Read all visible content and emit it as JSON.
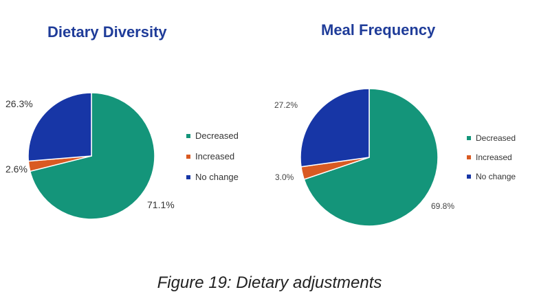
{
  "chart_data": [
    {
      "type": "pie",
      "title": "Dietary Diversity",
      "categories": [
        "Decreased",
        "Increased",
        "No change"
      ],
      "values": [
        71.1,
        2.6,
        26.3
      ],
      "labels": [
        "71.1%",
        "2.6%",
        "26.3%"
      ],
      "colors": [
        "#14957a",
        "#d95a22",
        "#1736a6"
      ],
      "legend_placement": "right"
    },
    {
      "type": "pie",
      "title": "Meal Frequency",
      "categories": [
        "Decreased",
        "Increased",
        "No change"
      ],
      "values": [
        69.8,
        3.0,
        27.2
      ],
      "labels": [
        "69.8%",
        "3.0%",
        "27.2%"
      ],
      "colors": [
        "#14957a",
        "#d95a22",
        "#1736a6"
      ],
      "legend_placement": "right"
    }
  ],
  "caption": "Figure 19: Dietary adjustments"
}
